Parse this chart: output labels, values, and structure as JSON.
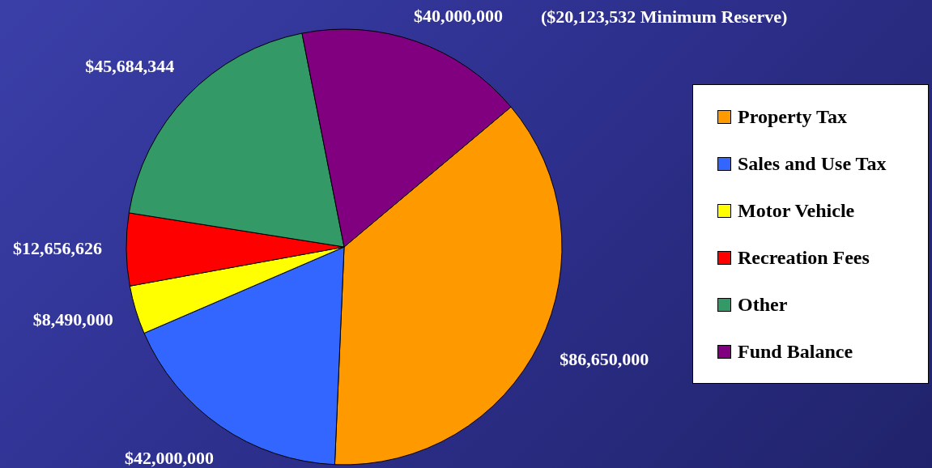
{
  "chart_data": {
    "type": "pie",
    "categories": [
      "Property Tax",
      "Sales and Use Tax",
      "Motor Vehicle",
      "Recreation Fees",
      "Other",
      "Fund Balance"
    ],
    "values": [
      86650000,
      42000000,
      8490000,
      12656626,
      45684344,
      40000000
    ],
    "value_labels": [
      "$86,650,000",
      "$42,000,000",
      "$8,490,000",
      "$12,656,626",
      "$45,684,344",
      "$40,000,000"
    ],
    "colors": [
      "#ff9900",
      "#3366ff",
      "#ffff00",
      "#ff0000",
      "#339966",
      "#800080"
    ],
    "annotations": [
      "($20,123,532 Minimum Reserve)"
    ],
    "legend": "right"
  }
}
